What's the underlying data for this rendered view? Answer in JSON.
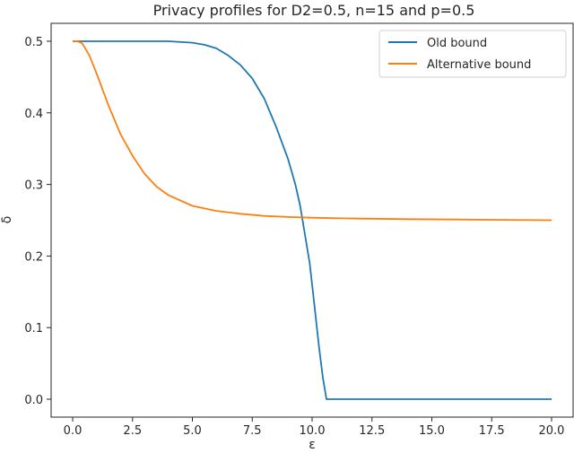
{
  "chart_data": {
    "type": "line",
    "title": "Privacy profiles for D2=0.5, n=15 and p=0.5",
    "xlabel": "ε",
    "ylabel": "δ",
    "xlim": [
      -0.9,
      20.9
    ],
    "ylim": [
      -0.025,
      0.525
    ],
    "xticks": [
      0.0,
      2.5,
      5.0,
      7.5,
      10.0,
      12.5,
      15.0,
      17.5,
      20.0
    ],
    "xtick_labels": [
      "0.0",
      "2.5",
      "5.0",
      "7.5",
      "10.0",
      "12.5",
      "15.0",
      "17.5",
      "20.0"
    ],
    "yticks": [
      0.0,
      0.1,
      0.2,
      0.3,
      0.4,
      0.5
    ],
    "ytick_labels": [
      "0.0",
      "0.1",
      "0.2",
      "0.3",
      "0.4",
      "0.5"
    ],
    "grid": false,
    "legend_position": "top-right",
    "series": [
      {
        "name": "Old bound",
        "color": "#1f77b4",
        "x": [
          0.0,
          1.0,
          2.0,
          3.0,
          4.0,
          5.0,
          5.5,
          6.0,
          6.5,
          7.0,
          7.5,
          8.0,
          8.5,
          9.0,
          9.3,
          9.5,
          9.7,
          9.9,
          10.0,
          10.1,
          10.2,
          10.3,
          10.45,
          10.6,
          11.0,
          12.0,
          14.0,
          16.0,
          18.0,
          20.0
        ],
        "y": [
          0.5,
          0.5,
          0.5,
          0.5,
          0.5,
          0.498,
          0.495,
          0.49,
          0.48,
          0.467,
          0.448,
          0.42,
          0.38,
          0.335,
          0.3,
          0.27,
          0.23,
          0.19,
          0.16,
          0.13,
          0.1,
          0.07,
          0.03,
          0.0,
          0.0,
          0.0,
          0.0,
          0.0,
          0.0,
          0.0
        ]
      },
      {
        "name": "Alternative bound",
        "color": "#ff7f0e",
        "x": [
          0.0,
          0.2,
          0.4,
          0.7,
          1.0,
          1.5,
          2.0,
          2.5,
          3.0,
          3.5,
          4.0,
          5.0,
          6.0,
          7.0,
          8.0,
          9.0,
          10.0,
          11.0,
          12.0,
          14.0,
          16.0,
          18.0,
          20.0
        ],
        "y": [
          0.5,
          0.5,
          0.497,
          0.48,
          0.455,
          0.41,
          0.37,
          0.34,
          0.315,
          0.297,
          0.285,
          0.27,
          0.263,
          0.259,
          0.256,
          0.2545,
          0.2535,
          0.2528,
          0.2522,
          0.2515,
          0.251,
          0.2505,
          0.25
        ]
      }
    ]
  }
}
